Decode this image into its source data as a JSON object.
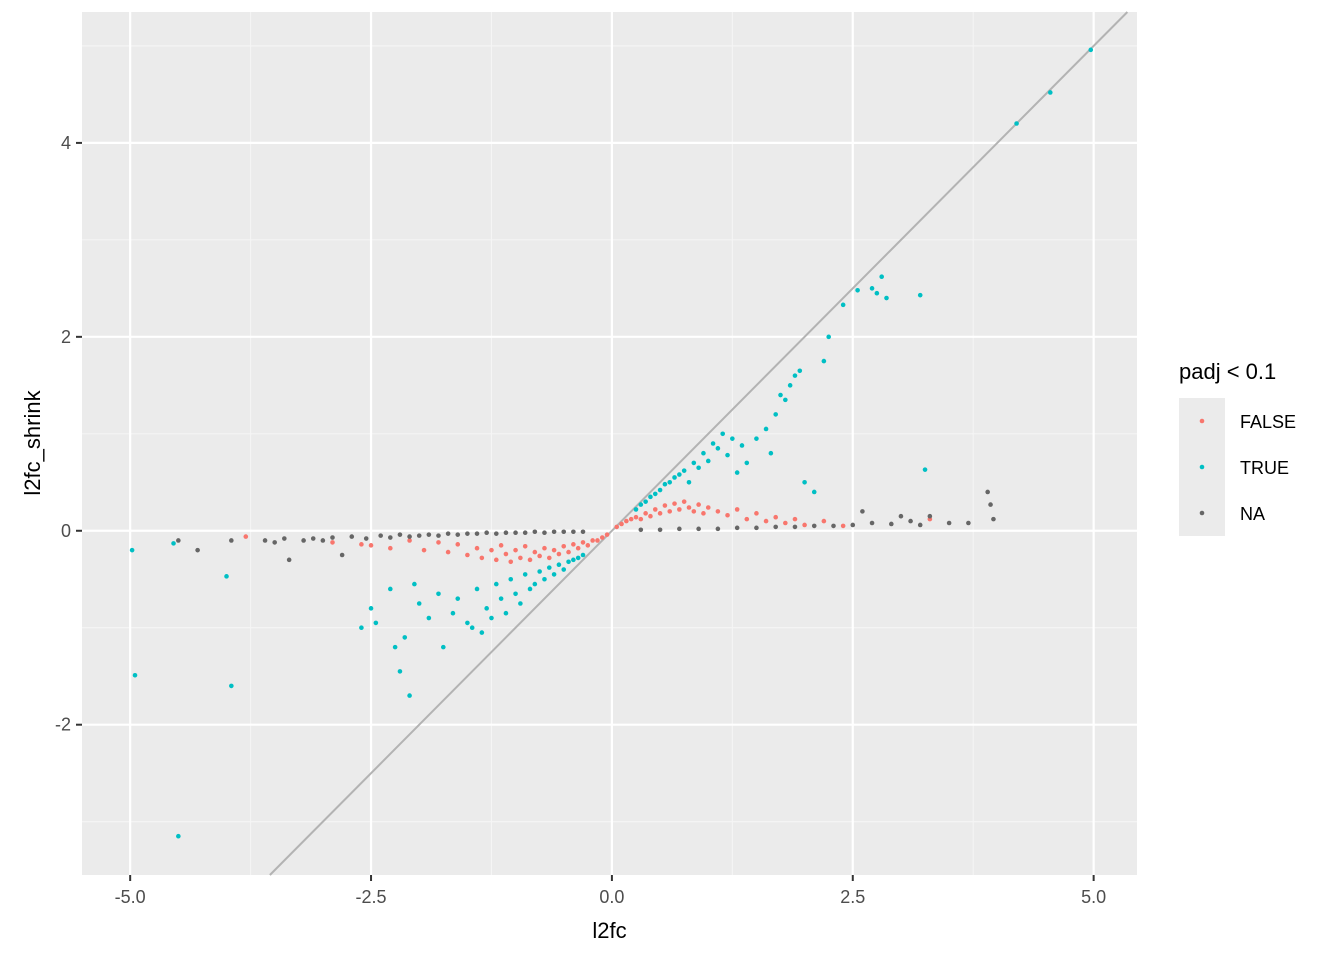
{
  "chart_data": {
    "type": "scatter",
    "xlabel": "l2fc",
    "ylabel": "l2fc_shrink",
    "xlim": [
      -5.5,
      5.45
    ],
    "ylim": [
      -3.55,
      5.35
    ],
    "x_ticks": [
      -5.0,
      -2.5,
      0.0,
      2.5,
      5.0
    ],
    "x_tick_labels": [
      "-5.0",
      "-2.5",
      "0.0",
      "2.5",
      "5.0"
    ],
    "y_ticks": [
      -2,
      0,
      2,
      4
    ],
    "y_tick_labels": [
      "-2",
      "0",
      "2",
      "4"
    ],
    "grid": true,
    "reference_line": {
      "slope": 1,
      "intercept": 0,
      "color": "#b3b3b3"
    },
    "legend": {
      "title": "padj < 0.1",
      "placement": "right",
      "entries": [
        {
          "label": "FALSE",
          "color": "#F8766D"
        },
        {
          "label": "TRUE",
          "color": "#00BFC4"
        },
        {
          "label": "NA",
          "color": "#666666"
        }
      ]
    },
    "series": [
      {
        "name": "FALSE",
        "color": "#F8766D",
        "points": [
          [
            -3.8,
            -0.06
          ],
          [
            -2.9,
            -0.12
          ],
          [
            -2.6,
            -0.14
          ],
          [
            -2.5,
            -0.15
          ],
          [
            -2.3,
            -0.18
          ],
          [
            -2.1,
            -0.1
          ],
          [
            -1.95,
            -0.2
          ],
          [
            -1.8,
            -0.12
          ],
          [
            -1.7,
            -0.22
          ],
          [
            -1.6,
            -0.14
          ],
          [
            -1.5,
            -0.25
          ],
          [
            -1.4,
            -0.18
          ],
          [
            -1.35,
            -0.28
          ],
          [
            -1.25,
            -0.2
          ],
          [
            -1.2,
            -0.3
          ],
          [
            -1.15,
            -0.15
          ],
          [
            -1.1,
            -0.24
          ],
          [
            -1.05,
            -0.32
          ],
          [
            -1.0,
            -0.2
          ],
          [
            -0.95,
            -0.28
          ],
          [
            -0.9,
            -0.16
          ],
          [
            -0.85,
            -0.3
          ],
          [
            -0.8,
            -0.22
          ],
          [
            -0.75,
            -0.26
          ],
          [
            -0.7,
            -0.18
          ],
          [
            -0.65,
            -0.28
          ],
          [
            -0.6,
            -0.2
          ],
          [
            -0.55,
            -0.24
          ],
          [
            -0.5,
            -0.16
          ],
          [
            -0.45,
            -0.22
          ],
          [
            -0.4,
            -0.14
          ],
          [
            -0.35,
            -0.18
          ],
          [
            -0.3,
            -0.12
          ],
          [
            -0.25,
            -0.15
          ],
          [
            -0.2,
            -0.1
          ],
          [
            -0.15,
            -0.1
          ],
          [
            -0.1,
            -0.07
          ],
          [
            -0.05,
            -0.04
          ],
          [
            0.05,
            0.04
          ],
          [
            0.1,
            0.07
          ],
          [
            0.15,
            0.1
          ],
          [
            0.2,
            0.12
          ],
          [
            0.25,
            0.14
          ],
          [
            0.3,
            0.12
          ],
          [
            0.35,
            0.18
          ],
          [
            0.4,
            0.15
          ],
          [
            0.45,
            0.22
          ],
          [
            0.5,
            0.18
          ],
          [
            0.55,
            0.26
          ],
          [
            0.6,
            0.2
          ],
          [
            0.65,
            0.28
          ],
          [
            0.7,
            0.22
          ],
          [
            0.75,
            0.3
          ],
          [
            0.8,
            0.24
          ],
          [
            0.85,
            0.2
          ],
          [
            0.9,
            0.27
          ],
          [
            0.95,
            0.18
          ],
          [
            1.0,
            0.24
          ],
          [
            1.1,
            0.2
          ],
          [
            1.2,
            0.16
          ],
          [
            1.3,
            0.22
          ],
          [
            1.4,
            0.12
          ],
          [
            1.5,
            0.18
          ],
          [
            1.6,
            0.1
          ],
          [
            1.7,
            0.14
          ],
          [
            1.8,
            0.08
          ],
          [
            1.9,
            0.12
          ],
          [
            2.0,
            0.06
          ],
          [
            2.2,
            0.1
          ],
          [
            2.4,
            0.05
          ],
          [
            3.3,
            0.12
          ]
        ]
      },
      {
        "name": "TRUE",
        "color": "#00BFC4",
        "points": [
          [
            -4.98,
            -0.2
          ],
          [
            -4.95,
            -1.49
          ],
          [
            -4.55,
            -0.13
          ],
          [
            -4.5,
            -3.15
          ],
          [
            -4.0,
            -0.47
          ],
          [
            -3.95,
            -1.6
          ],
          [
            -2.6,
            -1.0
          ],
          [
            -2.5,
            -0.8
          ],
          [
            -2.45,
            -0.95
          ],
          [
            -2.3,
            -0.6
          ],
          [
            -2.25,
            -1.2
          ],
          [
            -2.2,
            -1.45
          ],
          [
            -2.15,
            -1.1
          ],
          [
            -2.1,
            -1.7
          ],
          [
            -2.05,
            -0.55
          ],
          [
            -2.0,
            -0.75
          ],
          [
            -1.9,
            -0.9
          ],
          [
            -1.8,
            -0.65
          ],
          [
            -1.75,
            -1.2
          ],
          [
            -1.65,
            -0.85
          ],
          [
            -1.6,
            -0.7
          ],
          [
            -1.5,
            -0.95
          ],
          [
            -1.45,
            -1.0
          ],
          [
            -1.4,
            -0.6
          ],
          [
            -1.35,
            -1.05
          ],
          [
            -1.3,
            -0.8
          ],
          [
            -1.25,
            -0.9
          ],
          [
            -1.2,
            -0.55
          ],
          [
            -1.15,
            -0.7
          ],
          [
            -1.1,
            -0.85
          ],
          [
            -1.05,
            -0.5
          ],
          [
            -1.0,
            -0.65
          ],
          [
            -0.95,
            -0.75
          ],
          [
            -0.9,
            -0.45
          ],
          [
            -0.85,
            -0.6
          ],
          [
            -0.8,
            -0.55
          ],
          [
            -0.75,
            -0.42
          ],
          [
            -0.7,
            -0.5
          ],
          [
            -0.65,
            -0.38
          ],
          [
            -0.6,
            -0.45
          ],
          [
            -0.55,
            -0.35
          ],
          [
            -0.5,
            -0.4
          ],
          [
            -0.45,
            -0.32
          ],
          [
            -0.4,
            -0.3
          ],
          [
            -0.35,
            -0.28
          ],
          [
            -0.3,
            -0.25
          ],
          [
            0.25,
            0.22
          ],
          [
            0.3,
            0.27
          ],
          [
            0.35,
            0.3
          ],
          [
            0.4,
            0.35
          ],
          [
            0.45,
            0.38
          ],
          [
            0.5,
            0.42
          ],
          [
            0.55,
            0.48
          ],
          [
            0.6,
            0.5
          ],
          [
            0.65,
            0.55
          ],
          [
            0.7,
            0.58
          ],
          [
            0.75,
            0.62
          ],
          [
            0.8,
            0.5
          ],
          [
            0.85,
            0.7
          ],
          [
            0.9,
            0.65
          ],
          [
            0.95,
            0.8
          ],
          [
            1.0,
            0.72
          ],
          [
            1.05,
            0.9
          ],
          [
            1.1,
            0.85
          ],
          [
            1.15,
            1.0
          ],
          [
            1.2,
            0.78
          ],
          [
            1.25,
            0.95
          ],
          [
            1.3,
            0.6
          ],
          [
            1.35,
            0.88
          ],
          [
            1.4,
            0.7
          ],
          [
            1.5,
            0.95
          ],
          [
            1.6,
            1.05
          ],
          [
            1.65,
            0.8
          ],
          [
            1.7,
            1.2
          ],
          [
            1.75,
            1.4
          ],
          [
            1.8,
            1.35
          ],
          [
            1.85,
            1.5
          ],
          [
            1.9,
            1.6
          ],
          [
            1.95,
            1.65
          ],
          [
            2.0,
            0.5
          ],
          [
            2.1,
            0.4
          ],
          [
            2.2,
            1.75
          ],
          [
            2.25,
            2.0
          ],
          [
            2.4,
            2.33
          ],
          [
            2.55,
            2.48
          ],
          [
            2.7,
            2.5
          ],
          [
            2.75,
            2.45
          ],
          [
            2.8,
            2.62
          ],
          [
            2.85,
            2.4
          ],
          [
            3.2,
            2.43
          ],
          [
            3.25,
            0.63
          ],
          [
            4.2,
            4.2
          ],
          [
            4.55,
            4.52
          ],
          [
            4.97,
            4.96
          ]
        ]
      },
      {
        "name": "NA",
        "color": "#666666",
        "points": [
          [
            -4.5,
            -0.1
          ],
          [
            -4.3,
            -0.2
          ],
          [
            -3.95,
            -0.1
          ],
          [
            -3.6,
            -0.1
          ],
          [
            -3.5,
            -0.12
          ],
          [
            -3.4,
            -0.08
          ],
          [
            -3.35,
            -0.3
          ],
          [
            -3.2,
            -0.1
          ],
          [
            -3.1,
            -0.08
          ],
          [
            -3.0,
            -0.1
          ],
          [
            -2.9,
            -0.07
          ],
          [
            -2.8,
            -0.25
          ],
          [
            -2.7,
            -0.06
          ],
          [
            -2.55,
            -0.08
          ],
          [
            -2.4,
            -0.05
          ],
          [
            -2.3,
            -0.07
          ],
          [
            -2.2,
            -0.04
          ],
          [
            -2.1,
            -0.06
          ],
          [
            -2.0,
            -0.05
          ],
          [
            -1.9,
            -0.04
          ],
          [
            -1.8,
            -0.05
          ],
          [
            -1.7,
            -0.03
          ],
          [
            -1.6,
            -0.04
          ],
          [
            -1.5,
            -0.03
          ],
          [
            -1.4,
            -0.03
          ],
          [
            -1.3,
            -0.02
          ],
          [
            -1.2,
            -0.03
          ],
          [
            -1.1,
            -0.02
          ],
          [
            -1.0,
            -0.02
          ],
          [
            -0.9,
            -0.02
          ],
          [
            -0.8,
            -0.01
          ],
          [
            -0.7,
            -0.02
          ],
          [
            -0.6,
            -0.01
          ],
          [
            -0.5,
            -0.01
          ],
          [
            -0.4,
            -0.01
          ],
          [
            -0.3,
            -0.01
          ],
          [
            0.3,
            0.01
          ],
          [
            0.5,
            0.01
          ],
          [
            0.7,
            0.02
          ],
          [
            0.9,
            0.02
          ],
          [
            1.1,
            0.02
          ],
          [
            1.3,
            0.03
          ],
          [
            1.5,
            0.03
          ],
          [
            1.7,
            0.04
          ],
          [
            1.9,
            0.04
          ],
          [
            2.1,
            0.05
          ],
          [
            2.3,
            0.05
          ],
          [
            2.5,
            0.06
          ],
          [
            2.6,
            0.2
          ],
          [
            2.7,
            0.08
          ],
          [
            2.9,
            0.07
          ],
          [
            3.0,
            0.15
          ],
          [
            3.1,
            0.1
          ],
          [
            3.2,
            0.06
          ],
          [
            3.3,
            0.15
          ],
          [
            3.5,
            0.08
          ],
          [
            3.7,
            0.08
          ],
          [
            3.9,
            0.4
          ],
          [
            3.93,
            0.27
          ],
          [
            3.96,
            0.12
          ]
        ]
      }
    ]
  }
}
